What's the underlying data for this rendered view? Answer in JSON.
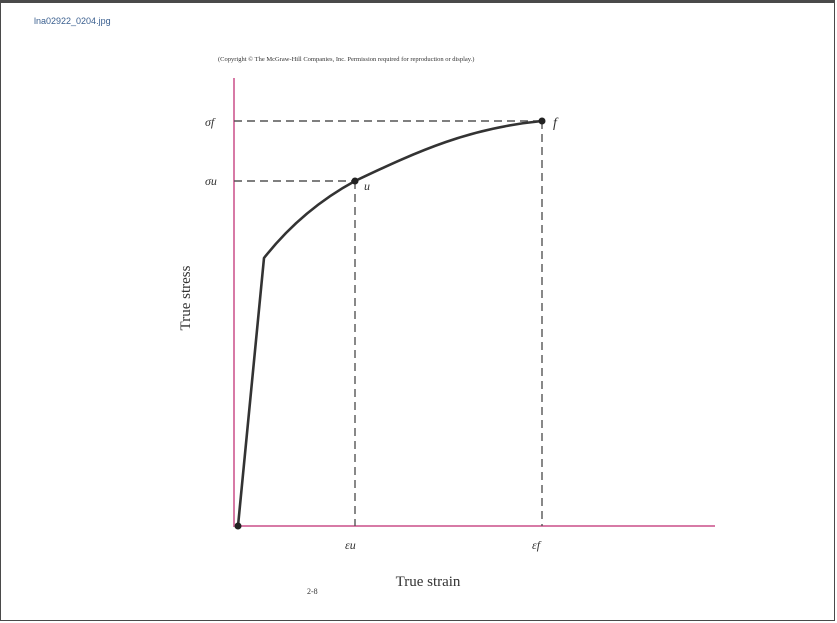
{
  "header": {
    "filename": "lna02922_0204.jpg",
    "copyright": "(Copyright © The McGraw-Hill Companies, Inc. Permission required for reproduction or display.)"
  },
  "figure": {
    "number": "2-8",
    "x_axis_label": "True strain",
    "y_axis_label": "True stress",
    "point_u_label": "u",
    "point_f_label": "f",
    "stress_u_symbol": "σu",
    "stress_f_symbol": "σf",
    "strain_u_symbol": "εu",
    "strain_f_symbol": "εf",
    "colors": {
      "axes": "#d77aa6",
      "curve": "#333333",
      "dashes": "#555555"
    }
  }
}
